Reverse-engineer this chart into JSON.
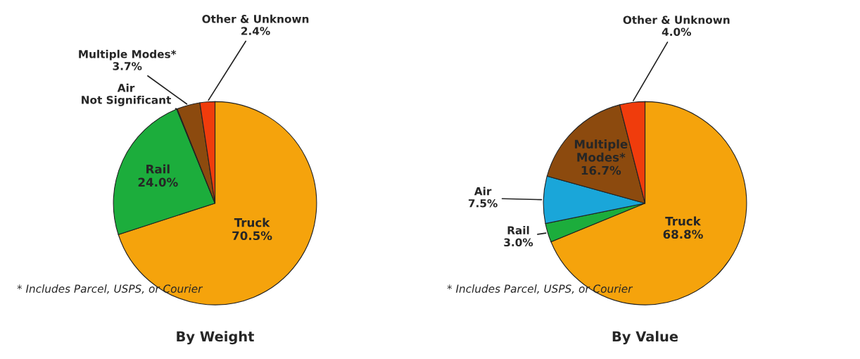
{
  "chart_data": [
    {
      "type": "pie",
      "title": "By Weight",
      "categories": [
        "Truck",
        "Rail",
        "Air",
        "Multiple Modes*",
        "Other & Unknown"
      ],
      "values": [
        70.5,
        24.0,
        0.1,
        3.7,
        2.4
      ],
      "value_labels": [
        "70.5%",
        "24.0%",
        "Not Significant",
        "3.7%",
        "2.4%"
      ],
      "colors": [
        "#f5a30c",
        "#1cad3c",
        "#1aa6d9",
        "#8c4a0e",
        "#f03c0c"
      ],
      "annotations": [
        "* Includes Parcel, USPS, or Courier"
      ]
    },
    {
      "type": "pie",
      "title": "By Value",
      "categories": [
        "Truck",
        "Rail",
        "Air",
        "Multiple Modes*",
        "Other & Unknown"
      ],
      "values": [
        68.8,
        3.0,
        7.5,
        16.7,
        4.0
      ],
      "value_labels": [
        "68.8%",
        "3.0%",
        "7.5%",
        "16.7%",
        "4.0%"
      ],
      "colors": [
        "#f5a30c",
        "#1cad3c",
        "#1aa6d9",
        "#8c4a0e",
        "#f03c0c"
      ],
      "annotations": [
        "* Includes Parcel, USPS, or Courier"
      ]
    }
  ]
}
